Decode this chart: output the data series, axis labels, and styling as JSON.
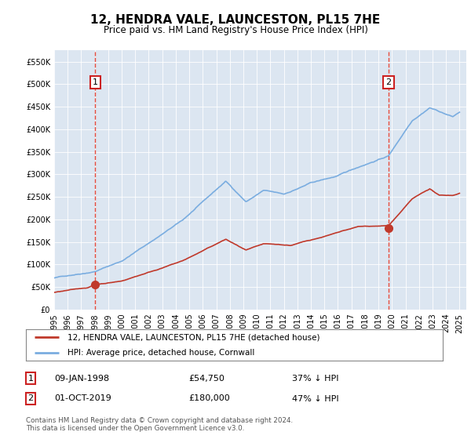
{
  "title": "12, HENDRA VALE, LAUNCESTON, PL15 7HE",
  "subtitle": "Price paid vs. HM Land Registry's House Price Index (HPI)",
  "background_color": "#dce6f1",
  "plot_bg_color": "#dce6f1",
  "hpi_color": "#7aade0",
  "price_color": "#c0392b",
  "marker_color": "#c0392b",
  "vline_color": "#e74c3c",
  "ylim": [
    0,
    575000
  ],
  "yticks": [
    0,
    50000,
    100000,
    150000,
    200000,
    250000,
    300000,
    350000,
    400000,
    450000,
    500000,
    550000
  ],
  "sale1_year": 1998.03,
  "sale1_price": 54750,
  "sale2_year": 2019.75,
  "sale2_price": 180000,
  "legend_line1": "12, HENDRA VALE, LAUNCESTON, PL15 7HE (detached house)",
  "legend_line2": "HPI: Average price, detached house, Cornwall",
  "license_text": "Contains HM Land Registry data © Crown copyright and database right 2024.\nThis data is licensed under the Open Government Licence v3.0."
}
